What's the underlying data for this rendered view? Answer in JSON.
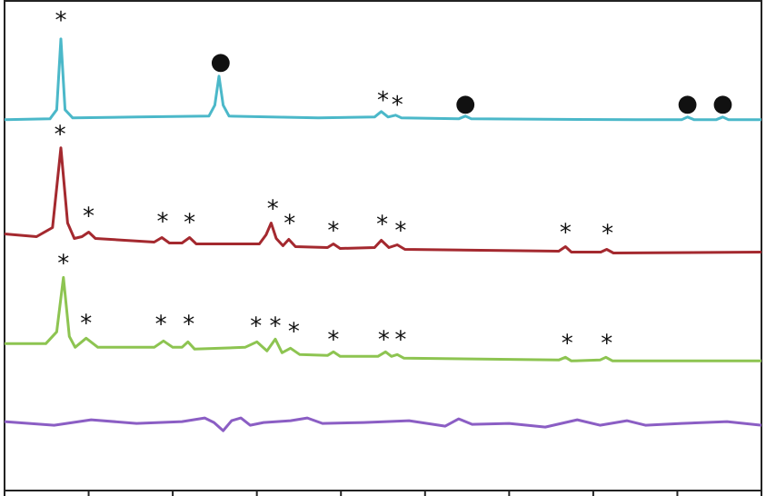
{
  "chart_data": {
    "type": "line",
    "xlim": [
      0,
      90
    ],
    "xticks": [
      0,
      10,
      20,
      30,
      40,
      50,
      60,
      70,
      80,
      90
    ],
    "ylim": [
      0,
      540
    ],
    "series": [
      {
        "color": "#4bb8c9",
        "x": [
          0,
          5.4,
          6.2,
          6.7,
          7.2,
          8.1,
          15.7,
          24.3,
          25.0,
          25.5,
          26.0,
          26.7,
          37.3,
          44.0,
          44.8,
          45.6,
          46.5,
          47.2,
          54.0,
          54.8,
          55.5,
          75.1,
          80.5,
          81.2,
          82.0,
          84.6,
          85.4,
          86.1,
          90
        ],
        "values": [
          409,
          410,
          420,
          498,
          420,
          411,
          412,
          413,
          425,
          457,
          425,
          413,
          411,
          412,
          418,
          412,
          414,
          411,
          410,
          413,
          410,
          409,
          409,
          412,
          409,
          409,
          412,
          409,
          409
        ]
      },
      {
        "color": "#a4292f",
        "x": [
          0,
          3.8,
          5.7,
          6.7,
          7.5,
          8.3,
          9.2,
          10.0,
          10.8,
          17.8,
          18.7,
          19.6,
          21.1,
          22.0,
          22.8,
          30.3,
          31.1,
          31.7,
          32.3,
          33.1,
          33.8,
          34.6,
          38.4,
          39.1,
          39.9,
          44.0,
          44.8,
          45.7,
          46.7,
          47.6,
          65.9,
          66.7,
          67.4,
          70.9,
          71.6,
          72.4,
          90
        ],
        "values": [
          283,
          280,
          290,
          378,
          295,
          278,
          280,
          285,
          278,
          274,
          279,
          273,
          273,
          279,
          272,
          272,
          282,
          295,
          278,
          270,
          277,
          269,
          268,
          272,
          267,
          268,
          276,
          268,
          271,
          266,
          264,
          269,
          263,
          263,
          266,
          262,
          263
        ]
      },
      {
        "color": "#8dc451",
        "x": [
          0,
          4.9,
          6.2,
          7.0,
          7.7,
          8.4,
          9.7,
          11.1,
          17.8,
          18.9,
          20.0,
          21.1,
          21.8,
          22.6,
          28.6,
          30.0,
          31.2,
          32.2,
          33.0,
          34.0,
          35.1,
          38.4,
          39.1,
          39.9,
          44.4,
          45.3,
          46.0,
          46.7,
          47.5,
          65.9,
          66.7,
          67.4,
          70.8,
          71.5,
          72.3,
          90
        ],
        "values": [
          162,
          162,
          175,
          235,
          170,
          158,
          168,
          158,
          158,
          165,
          158,
          158,
          164,
          156,
          158,
          164,
          154,
          167,
          152,
          157,
          150,
          149,
          153,
          148,
          148,
          153,
          148,
          150,
          146,
          144,
          147,
          143,
          144,
          147,
          143,
          143
        ]
      },
      {
        "color": "#8b5ec4",
        "x": [
          0,
          5.9,
          10.3,
          15.7,
          21.1,
          23.8,
          24.9,
          26.0,
          27.0,
          28.1,
          29.2,
          30.8,
          34.0,
          36.0,
          37.8,
          42.7,
          48.1,
          52.4,
          54.0,
          55.6,
          60.0,
          64.3,
          68.1,
          70.8,
          74.0,
          76.2,
          80.5,
          85.9,
          90
        ],
        "values": [
          76,
          72,
          78,
          74,
          76,
          80,
          75,
          66,
          77,
          80,
          72,
          75,
          77,
          80,
          74,
          75,
          77,
          71,
          79,
          73,
          74,
          70,
          78,
          72,
          77,
          72,
          74,
          76,
          72
        ]
      }
    ],
    "annotations": [
      {
        "text": "*",
        "x": 6.7,
        "y": 518
      },
      {
        "text": "●",
        "x": 25.7,
        "y": 473
      },
      {
        "text": "*",
        "x": 45.0,
        "y": 430
      },
      {
        "text": "*",
        "x": 46.7,
        "y": 425
      },
      {
        "text": "●",
        "x": 54.8,
        "y": 427
      },
      {
        "text": "●",
        "x": 81.2,
        "y": 427
      },
      {
        "text": "●",
        "x": 85.4,
        "y": 427
      },
      {
        "text": "*",
        "x": 6.6,
        "y": 392
      },
      {
        "text": "*",
        "x": 10.0,
        "y": 302
      },
      {
        "text": "*",
        "x": 18.8,
        "y": 296
      },
      {
        "text": "*",
        "x": 22.0,
        "y": 295
      },
      {
        "text": "*",
        "x": 31.9,
        "y": 310
      },
      {
        "text": "*",
        "x": 33.9,
        "y": 294
      },
      {
        "text": "*",
        "x": 39.1,
        "y": 286
      },
      {
        "text": "*",
        "x": 44.9,
        "y": 293
      },
      {
        "text": "*",
        "x": 47.1,
        "y": 286
      },
      {
        "text": "*",
        "x": 66.7,
        "y": 284
      },
      {
        "text": "*",
        "x": 71.7,
        "y": 283
      },
      {
        "text": "*",
        "x": 7.0,
        "y": 250
      },
      {
        "text": "*",
        "x": 9.7,
        "y": 184
      },
      {
        "text": "*",
        "x": 18.6,
        "y": 183
      },
      {
        "text": "*",
        "x": 21.9,
        "y": 183
      },
      {
        "text": "*",
        "x": 29.9,
        "y": 181
      },
      {
        "text": "*",
        "x": 32.2,
        "y": 181
      },
      {
        "text": "*",
        "x": 34.4,
        "y": 175
      },
      {
        "text": "*",
        "x": 39.1,
        "y": 166
      },
      {
        "text": "*",
        "x": 45.1,
        "y": 166
      },
      {
        "text": "*",
        "x": 47.1,
        "y": 166
      },
      {
        "text": "*",
        "x": 66.9,
        "y": 162
      },
      {
        "text": "*",
        "x": 71.6,
        "y": 162
      }
    ]
  }
}
